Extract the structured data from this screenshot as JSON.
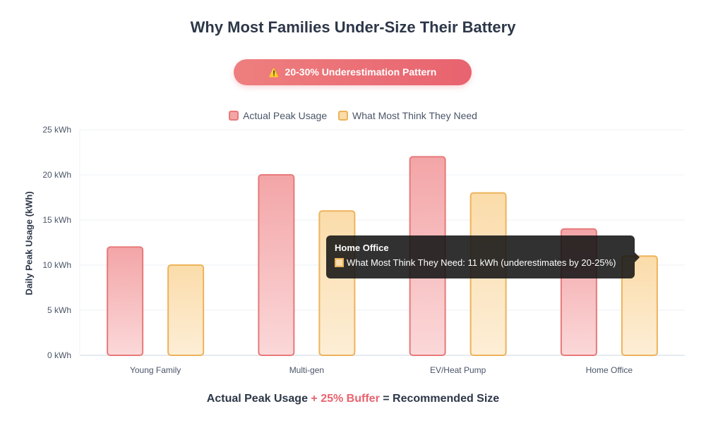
{
  "title": "Why Most Families Under-Size Their Battery",
  "badge": {
    "icon": "warning-icon",
    "text": "20-30% Underestimation Pattern",
    "color": "#e8636f"
  },
  "legend": [
    {
      "label": "Actual Peak Usage",
      "color": "#f3a5a7"
    },
    {
      "label": "What Most Think They Need",
      "color": "#fbdcaa"
    }
  ],
  "chart_data": {
    "type": "bar",
    "categories": [
      "Young Family",
      "Multi-gen",
      "EV/Heat Pump",
      "Home Office"
    ],
    "series": [
      {
        "name": "Actual Peak Usage",
        "values": [
          12,
          20,
          22,
          14
        ],
        "color": "#e87979",
        "fill_top": "#f3a5a7",
        "fill_bottom": "#fbd8d9"
      },
      {
        "name": "What Most Think They Need",
        "values": [
          10,
          16,
          18,
          11
        ],
        "color": "#edb35a",
        "fill_top": "#fbdcaa",
        "fill_bottom": "#fdeed6"
      }
    ],
    "ylabel": "Daily Peak Usage (kWh)",
    "ylim": [
      0,
      25
    ],
    "yticks": [
      0,
      5,
      10,
      15,
      20,
      25
    ],
    "ytick_labels": [
      "0 kWh",
      "5 kWh",
      "10 kWh",
      "15 kWh",
      "20 kWh",
      "25 kWh"
    ],
    "grid": true,
    "legend_position": "top-center"
  },
  "tooltip": {
    "title": "Home Office",
    "text": "What Most Think They Need: 11 kWh (underestimates by 20-25%)"
  },
  "footer": {
    "part1": "Actual Peak Usage",
    "accent": "+ 25% Buffer",
    "part2": "= Recommended Size"
  }
}
